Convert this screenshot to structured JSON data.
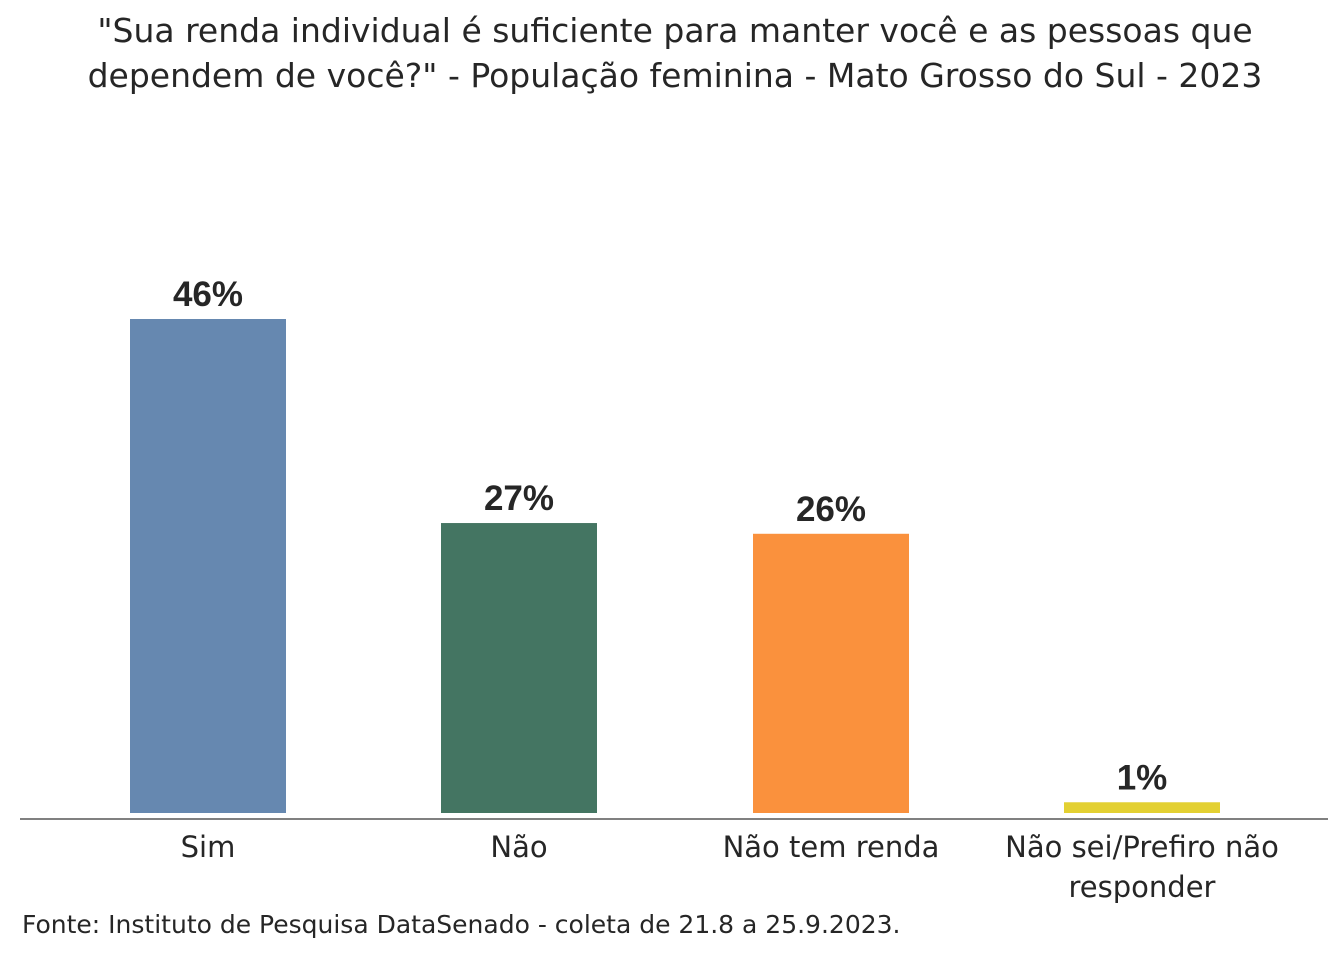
{
  "chart_data": {
    "type": "bar",
    "title": "\"Sua renda individual é suficiente para manter você e as pessoas que dependem de você?\" - População feminina - Mato Grosso do Sul - 2023",
    "categories": [
      "Sim",
      "Não",
      "Não tem renda",
      "Não sei/Prefiro não responder"
    ],
    "category_lines": [
      [
        "Sim"
      ],
      [
        "Não"
      ],
      [
        "Não tem renda"
      ],
      [
        "Não sei/Prefiro não",
        "responder"
      ]
    ],
    "values": [
      46,
      27,
      26,
      1
    ],
    "value_labels": [
      "46%",
      "27%",
      "26%",
      "1%"
    ],
    "colors": [
      "#6688b0",
      "#447562",
      "#fa913d",
      "#e3d032"
    ],
    "axis_color": "#808080",
    "xlabel": "",
    "ylabel": "",
    "ylim": [
      0,
      50
    ],
    "grid": false,
    "legend": "none"
  },
  "source": "Fonte: Instituto de Pesquisa DataSenado - coleta de 21.8 a 25.9.2023."
}
